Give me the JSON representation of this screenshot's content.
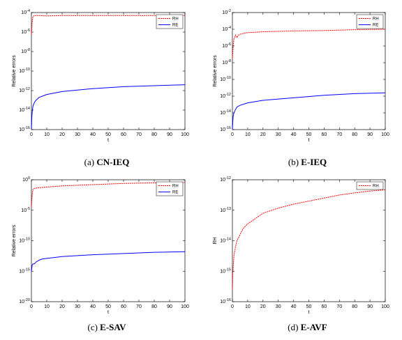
{
  "chart_data": [
    {
      "type": "line",
      "caption_prefix": "(a)",
      "caption_name": "CN-IEQ",
      "xlabel": "t",
      "ylabel": "Relative errors",
      "xlim": [
        0,
        100
      ],
      "ylim_exp": [
        -16,
        -4
      ],
      "yscale": "log",
      "xticks": [
        "0",
        "10",
        "20",
        "30",
        "40",
        "50",
        "60",
        "70",
        "80",
        "90",
        "100"
      ],
      "yticks": [
        {
          "base": "10",
          "exp": "-16"
        },
        {
          "base": "10",
          "exp": "-14"
        },
        {
          "base": "10",
          "exp": "-12"
        },
        {
          "base": "10",
          "exp": "-10"
        },
        {
          "base": "10",
          "exp": "-8"
        },
        {
          "base": "10",
          "exp": "-6"
        },
        {
          "base": "10",
          "exp": "-4"
        }
      ],
      "legend_position": "top-right",
      "series": [
        {
          "name": "RH",
          "color": "#ff0000",
          "dash": true,
          "x": [
            0,
            0.5,
            1,
            2,
            3,
            5,
            10,
            20,
            40,
            60,
            80,
            100
          ],
          "logy": [
            -6.3,
            -5.0,
            -4.4,
            -4.3,
            -4.3,
            -4.3,
            -4.35,
            -4.3,
            -4.3,
            -4.3,
            -4.3,
            -4.3
          ]
        },
        {
          "name": "RE",
          "color": "#0000ff",
          "dash": false,
          "x": [
            0,
            0.3,
            0.6,
            1,
            2,
            3,
            5,
            10,
            20,
            40,
            60,
            80,
            100
          ],
          "logy": [
            -16,
            -14.6,
            -14.1,
            -13.6,
            -13.2,
            -13.0,
            -12.7,
            -12.4,
            -12.1,
            -11.8,
            -11.6,
            -11.5,
            -11.4
          ]
        }
      ]
    },
    {
      "type": "line",
      "caption_prefix": "(b)",
      "caption_name": "E-IEQ",
      "xlabel": "t",
      "ylabel": "Relative errors",
      "xlim": [
        0,
        100
      ],
      "ylim_exp": [
        -16,
        -2
      ],
      "yscale": "log",
      "xticks": [
        "0",
        "10",
        "20",
        "30",
        "40",
        "50",
        "60",
        "70",
        "80",
        "90",
        "100"
      ],
      "yticks": [
        {
          "base": "10",
          "exp": "-16"
        },
        {
          "base": "10",
          "exp": "-14"
        },
        {
          "base": "10",
          "exp": "-12"
        },
        {
          "base": "10",
          "exp": "-10"
        },
        {
          "base": "10",
          "exp": "-8"
        },
        {
          "base": "10",
          "exp": "-6"
        },
        {
          "base": "10",
          "exp": "-4"
        },
        {
          "base": "10",
          "exp": "-2"
        }
      ],
      "legend_position": "top-right",
      "series": [
        {
          "name": "RH",
          "color": "#ff0000",
          "dash": true,
          "x": [
            0,
            0.5,
            1,
            2,
            3,
            4,
            5,
            7,
            10,
            20,
            40,
            60,
            80,
            100
          ],
          "logy": [
            -7.5,
            -6.0,
            -5.2,
            -4.7,
            -5.0,
            -4.7,
            -4.6,
            -4.5,
            -4.4,
            -4.3,
            -4.2,
            -4.15,
            -4.05,
            -4.0
          ]
        },
        {
          "name": "RE",
          "color": "#0000ff",
          "dash": false,
          "x": [
            0,
            0.3,
            0.6,
            1,
            2,
            3,
            5,
            10,
            20,
            40,
            60,
            80,
            100
          ],
          "logy": [
            -16,
            -14.8,
            -14.3,
            -14.0,
            -13.6,
            -13.3,
            -13.1,
            -12.8,
            -12.5,
            -12.2,
            -11.9,
            -11.7,
            -11.6
          ]
        }
      ]
    },
    {
      "type": "line",
      "caption_prefix": "(c)",
      "caption_name": "E-SAV",
      "xlabel": "t",
      "ylabel": "Relative errors",
      "xlim": [
        0,
        100
      ],
      "ylim_exp": [
        -20,
        0
      ],
      "yscale": "log",
      "xticks": [
        "0",
        "10",
        "20",
        "30",
        "40",
        "50",
        "60",
        "70",
        "80",
        "90",
        "100"
      ],
      "yticks": [
        {
          "base": "10",
          "exp": "-20"
        },
        {
          "base": "10",
          "exp": "-15"
        },
        {
          "base": "10",
          "exp": "-10"
        },
        {
          "base": "10",
          "exp": "-5"
        },
        {
          "base": "10",
          "exp": "0"
        }
      ],
      "legend_position": "top-right",
      "series": [
        {
          "name": "RH",
          "color": "#ff0000",
          "dash": true,
          "x": [
            0,
            0.5,
            1,
            2,
            5,
            10,
            20,
            40,
            60,
            80,
            100
          ],
          "logy": [
            -4.5,
            -2.5,
            -1.6,
            -1.4,
            -1.3,
            -1.2,
            -1.0,
            -0.8,
            -0.6,
            -0.5,
            -0.45
          ]
        },
        {
          "name": "RE",
          "color": "#0000ff",
          "dash": false,
          "x": [
            0,
            0.5,
            1,
            2,
            3,
            5,
            7,
            10,
            20,
            40,
            60,
            80,
            100
          ],
          "logy": [
            -15.0,
            -14.0,
            -13.8,
            -13.8,
            -13.5,
            -13.2,
            -13.0,
            -12.9,
            -12.6,
            -12.3,
            -12.1,
            -11.9,
            -11.8
          ]
        }
      ]
    },
    {
      "type": "line",
      "caption_prefix": "(d)",
      "caption_name": "E-AVF",
      "xlabel": "t",
      "ylabel": "RH",
      "xlim": [
        0,
        100
      ],
      "ylim_exp": [
        -16,
        -12
      ],
      "yscale": "log",
      "xticks": [
        "0",
        "10",
        "20",
        "30",
        "40",
        "50",
        "60",
        "70",
        "80",
        "90",
        "100"
      ],
      "yticks": [
        {
          "base": "10",
          "exp": "-16"
        },
        {
          "base": "10",
          "exp": "-15"
        },
        {
          "base": "10",
          "exp": "-14"
        },
        {
          "base": "10",
          "exp": "-13"
        },
        {
          "base": "10",
          "exp": "-12"
        }
      ],
      "legend_position": "top-right",
      "series": [
        {
          "name": "RH",
          "color": "#ff0000",
          "dash": true,
          "x": [
            0,
            0.3,
            0.6,
            1,
            2,
            3,
            5,
            7,
            10,
            20,
            30,
            40,
            50,
            60,
            70,
            80,
            90,
            100
          ],
          "logy": [
            -15.6,
            -15.0,
            -14.8,
            -14.5,
            -14.2,
            -14.0,
            -13.8,
            -13.6,
            -13.45,
            -13.1,
            -12.93,
            -12.8,
            -12.7,
            -12.6,
            -12.5,
            -12.43,
            -12.37,
            -12.33
          ]
        }
      ]
    }
  ]
}
